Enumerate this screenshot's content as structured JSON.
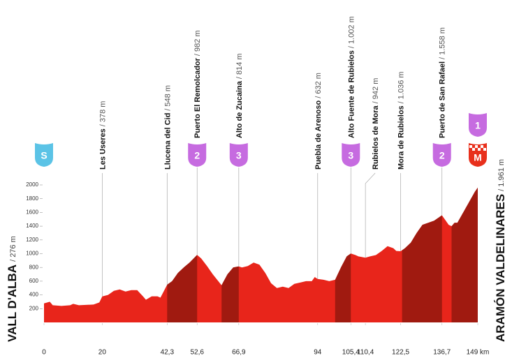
{
  "chart_data": {
    "type": "area",
    "color": "#e8251b",
    "climb_color": "#a01a10",
    "xlim": [
      0,
      149
    ],
    "ylim": [
      0,
      2000
    ],
    "yticks": [
      200,
      400,
      600,
      800,
      1000,
      1200,
      1400,
      1600,
      1800,
      2000
    ],
    "xticks": [
      0,
      20,
      {
        "value": 42.3,
        "label": "42,3"
      },
      {
        "value": 52.6,
        "label": "52,6"
      },
      {
        "value": 66.9,
        "label": "66,9"
      },
      94,
      {
        "value": 105.4,
        "label": "105,4"
      },
      {
        "value": 110.4,
        "label": "110,4"
      },
      {
        "value": 122.5,
        "label": "122,5"
      },
      {
        "value": 136.7,
        "label": "136,7"
      },
      {
        "value": 149,
        "label": "149 km"
      }
    ],
    "x": [
      0,
      2,
      3,
      6,
      9,
      10,
      12,
      17,
      19,
      20,
      22,
      24,
      26,
      28,
      30,
      32,
      34,
      35,
      37,
      39,
      40,
      42.3,
      44,
      46,
      48,
      50,
      52.6,
      54,
      56,
      58,
      61,
      63,
      65,
      66.9,
      68,
      70,
      72,
      74,
      76,
      78,
      80,
      82,
      84,
      86,
      88,
      90,
      92,
      93,
      94,
      96,
      98,
      100,
      102,
      104,
      105.4,
      107,
      108,
      110.4,
      112,
      114,
      116,
      118,
      120,
      121,
      122.5,
      124,
      126,
      128,
      130,
      132,
      134,
      136.7,
      138,
      139,
      140,
      141,
      142,
      144,
      146,
      148,
      149
    ],
    "values": [
      276,
      300,
      250,
      240,
      250,
      270,
      250,
      260,
      290,
      378,
      400,
      460,
      480,
      450,
      470,
      470,
      380,
      330,
      380,
      380,
      360,
      548,
      600,
      720,
      800,
      870,
      982,
      930,
      820,
      700,
      540,
      700,
      800,
      814,
      800,
      820,
      870,
      840,
      720,
      570,
      500,
      520,
      500,
      560,
      580,
      600,
      600,
      660,
      632,
      620,
      600,
      620,
      800,
      960,
      1002,
      980,
      960,
      942,
      960,
      980,
      1040,
      1110,
      1080,
      1040,
      1036,
      1080,
      1160,
      1300,
      1420,
      1450,
      1480,
      1558,
      1480,
      1420,
      1400,
      1450,
      1450,
      1600,
      1750,
      1900,
      1961
    ],
    "climb_segments": [
      [
        42.3,
        52.6
      ],
      [
        61,
        66.9
      ],
      [
        100,
        105.4
      ],
      [
        123,
        136.7
      ],
      [
        140,
        149
      ]
    ],
    "start": {
      "name": "VALL D'ALBA",
      "altitude": "/ 276 m"
    },
    "finish": {
      "name": "ARAMÓN VALDELINARES",
      "altitude": "/ 1.961 m"
    },
    "waypoints": [
      {
        "name": "Les Useres",
        "altitude": "/ 378 m",
        "km": 20
      },
      {
        "name": "Llucena del Cid",
        "altitude": "/ 548 m",
        "km": 42.3
      },
      {
        "name": "Puerto El Remolcador",
        "altitude": "/ 982 m",
        "km": 52.6,
        "category": "2"
      },
      {
        "name": "Alto de Zucaina",
        "altitude": "/ 814 m",
        "km": 66.9,
        "category": "3"
      },
      {
        "name": "Puebla de Arenoso",
        "altitude": "/ 632 m",
        "km": 94
      },
      {
        "name": "Alto Fuente de Rubielos",
        "altitude": "/ 1.002 m",
        "km": 105.4,
        "category": "3"
      },
      {
        "name": "Rubielos de Mora",
        "altitude": "/ 942 m",
        "km": 110.4
      },
      {
        "name": "Mora de Rubielos",
        "altitude": "/ 1.036 m",
        "km": 122.5
      },
      {
        "name": "Puerto de San Rafael",
        "altitude": "/ 1.558 m",
        "km": 136.7,
        "category": "2"
      }
    ],
    "markers": [
      {
        "label": "S",
        "km": 0,
        "color": "#5bc3e6"
      },
      {
        "label": "1",
        "km": 149,
        "color": "#c66be0",
        "row": 2
      },
      {
        "label": "M",
        "km": 149,
        "color": "#e8301c",
        "checkered": true
      }
    ],
    "category_color": "#c66be0"
  }
}
